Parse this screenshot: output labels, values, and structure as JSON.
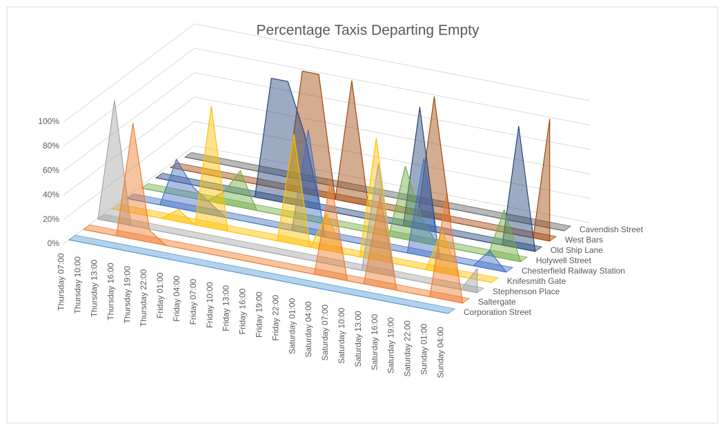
{
  "chart_data": {
    "type": "area3d",
    "title": "Percentage Taxis Departing Empty",
    "categories": [
      "Thursday 07:00",
      "Thursday 10:00",
      "Thursday 13:00",
      "Thursday 16:00",
      "Thursday 19:00",
      "Thursday 22:00",
      "Friday 01:00",
      "Friday 04:00",
      "Friday 07:00",
      "Friday 10:00",
      "Friday 13:00",
      "Friday 16:00",
      "Friday 19:00",
      "Friday 22:00",
      "Saturday 01:00",
      "Saturday 04:00",
      "Saturday 07:00",
      "Saturday 10:00",
      "Saturday 13:00",
      "Saturday 16:00",
      "Saturday 19:00",
      "Saturday 22:00",
      "Sunday 01:00",
      "Sunday 04:00"
    ],
    "series": [
      {
        "name": "Corporation Street",
        "color": "#5b9bd5",
        "values": [
          0,
          0,
          0,
          0,
          0,
          0,
          0,
          0,
          0,
          0,
          0,
          0,
          0,
          0,
          0,
          0,
          0,
          0,
          0,
          0,
          0,
          0,
          0,
          0
        ]
      },
      {
        "name": "Saltergate",
        "color": "#ed7d31",
        "values": [
          0,
          0,
          0,
          95,
          10,
          0,
          0,
          0,
          0,
          0,
          0,
          0,
          0,
          0,
          0,
          80,
          0,
          0,
          75,
          0,
          0,
          0,
          85,
          0
        ]
      },
      {
        "name": "Stephenson Place",
        "color": "#a5a5a5",
        "values": [
          0,
          100,
          0,
          0,
          0,
          0,
          0,
          0,
          0,
          0,
          0,
          0,
          0,
          0,
          0,
          0,
          0,
          90,
          0,
          0,
          0,
          0,
          0,
          20
        ]
      },
      {
        "name": "Knifesmith Gate",
        "color": "#ffc000",
        "values": [
          0,
          0,
          0,
          0,
          10,
          0,
          100,
          0,
          0,
          0,
          0,
          90,
          0,
          30,
          0,
          0,
          100,
          0,
          0,
          0,
          35,
          0,
          0,
          0
        ]
      },
      {
        "name": "Chesterfield Railway Station",
        "color": "#4472c4",
        "values": [
          0,
          0,
          0,
          40,
          20,
          10,
          0,
          0,
          0,
          0,
          0,
          85,
          0,
          0,
          0,
          0,
          0,
          0,
          80,
          0,
          0,
          0,
          15,
          0
        ]
      },
      {
        "name": "Holywell Street",
        "color": "#70ad47",
        "values": [
          0,
          0,
          0,
          0,
          0,
          10,
          30,
          0,
          0,
          0,
          0,
          0,
          0,
          0,
          0,
          0,
          60,
          20,
          0,
          0,
          0,
          0,
          40,
          0
        ]
      },
      {
        "name": "Old Ship Lane",
        "color": "#264478",
        "values": [
          0,
          0,
          0,
          0,
          0,
          0,
          0,
          100,
          100,
          60,
          0,
          0,
          0,
          0,
          0,
          0,
          100,
          0,
          0,
          0,
          0,
          0,
          100,
          0
        ]
      },
      {
        "name": "West Bars",
        "color": "#9e480e",
        "values": [
          0,
          0,
          0,
          0,
          0,
          0,
          0,
          0,
          100,
          100,
          0,
          100,
          0,
          0,
          0,
          0,
          100,
          0,
          0,
          0,
          0,
          0,
          0,
          100
        ]
      },
      {
        "name": "Cavendish Street",
        "color": "#636363",
        "values": [
          0,
          0,
          0,
          0,
          0,
          0,
          0,
          0,
          0,
          0,
          0,
          0,
          0,
          0,
          0,
          0,
          0,
          0,
          0,
          0,
          0,
          0,
          0,
          0
        ]
      }
    ],
    "ylim": [
      0,
      100
    ],
    "yticks": [
      {
        "value": 0,
        "label": "0%"
      },
      {
        "value": 20,
        "label": "20%"
      },
      {
        "value": 40,
        "label": "40%"
      },
      {
        "value": 60,
        "label": "60%"
      },
      {
        "value": 80,
        "label": "80%"
      },
      {
        "value": 100,
        "label": "100%"
      }
    ],
    "grid": true
  }
}
